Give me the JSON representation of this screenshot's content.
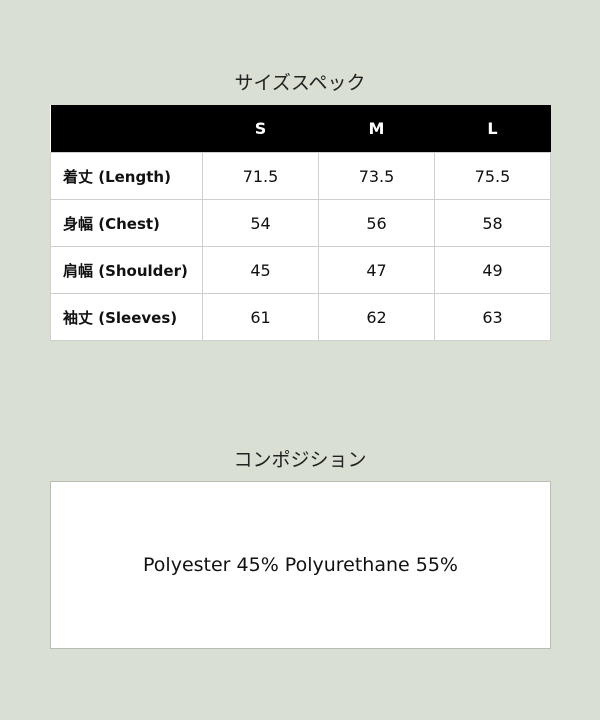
{
  "size_spec": {
    "title": "サイズスペック",
    "columns": [
      "",
      "S",
      "M",
      "L"
    ],
    "rows": [
      {
        "label": "着丈 (Length)",
        "values": [
          "71.5",
          "73.5",
          "75.5"
        ]
      },
      {
        "label": "身幅 (Chest)",
        "values": [
          "54",
          "56",
          "58"
        ]
      },
      {
        "label": "肩幅 (Shoulder)",
        "values": [
          "45",
          "47",
          "49"
        ]
      },
      {
        "label": "袖丈 (Sleeves)",
        "values": [
          "61",
          "62",
          "63"
        ]
      }
    ]
  },
  "composition": {
    "title": "コンポジション",
    "text": "Polyester 45% Polyurethane 55%"
  }
}
